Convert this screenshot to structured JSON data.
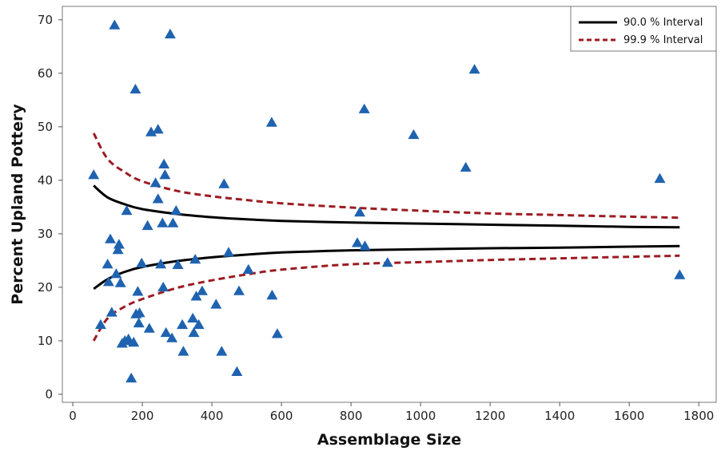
{
  "chart_data": {
    "type": "scatter",
    "title": "",
    "xlabel": "Assemblage Size",
    "ylabel": "Percent Upland Pottery",
    "xlim": [
      -30,
      1850
    ],
    "ylim": [
      -1.5,
      72.5
    ],
    "xticks": [
      0,
      200,
      400,
      600,
      800,
      1000,
      1200,
      1400,
      1600,
      1800
    ],
    "yticks": [
      0,
      10,
      20,
      30,
      40,
      50,
      60,
      70
    ],
    "grid": false,
    "legend_position": "top-right",
    "colors": {
      "points": "#1f63b0",
      "interval_90": "#000000",
      "interval_999": "#9b1c22"
    },
    "points": [
      [
        60,
        41
      ],
      [
        80,
        13
      ],
      [
        100,
        24.3
      ],
      [
        103,
        21
      ],
      [
        108,
        29
      ],
      [
        112,
        15.3
      ],
      [
        120,
        69
      ],
      [
        125,
        22.5
      ],
      [
        130,
        27
      ],
      [
        133,
        28
      ],
      [
        137,
        20.8
      ],
      [
        142,
        9.5
      ],
      [
        150,
        10
      ],
      [
        155,
        34.3
      ],
      [
        160,
        10.3
      ],
      [
        168,
        3
      ],
      [
        175,
        9.7
      ],
      [
        180,
        57
      ],
      [
        182,
        15
      ],
      [
        187,
        19.2
      ],
      [
        190,
        13.3
      ],
      [
        192,
        15.2
      ],
      [
        198,
        24.5
      ],
      [
        215,
        31.5
      ],
      [
        220,
        12.3
      ],
      [
        225,
        49
      ],
      [
        238,
        39.5
      ],
      [
        245,
        49.5
      ],
      [
        245,
        36.5
      ],
      [
        253,
        24.3
      ],
      [
        258,
        32
      ],
      [
        260,
        20
      ],
      [
        262,
        43
      ],
      [
        265,
        41
      ],
      [
        268,
        11.5
      ],
      [
        280,
        67.3
      ],
      [
        285,
        10.5
      ],
      [
        288,
        32
      ],
      [
        297,
        34.3
      ],
      [
        302,
        24.2
      ],
      [
        315,
        13
      ],
      [
        318,
        8
      ],
      [
        345,
        14.2
      ],
      [
        348,
        11.5
      ],
      [
        352,
        25.2
      ],
      [
        355,
        18.3
      ],
      [
        362,
        13
      ],
      [
        372,
        19.3
      ],
      [
        412,
        16.8
      ],
      [
        428,
        8
      ],
      [
        435,
        39.3
      ],
      [
        448,
        26.5
      ],
      [
        472,
        4.2
      ],
      [
        478,
        19.3
      ],
      [
        505,
        23.3
      ],
      [
        572,
        50.8
      ],
      [
        573,
        18.5
      ],
      [
        588,
        11.3
      ],
      [
        818,
        28.3
      ],
      [
        825,
        34
      ],
      [
        838,
        53.3
      ],
      [
        840,
        27.7
      ],
      [
        905,
        24.6
      ],
      [
        980,
        48.5
      ],
      [
        1130,
        42.4
      ],
      [
        1155,
        60.7
      ],
      [
        1688,
        40.3
      ],
      [
        1745,
        22.3
      ]
    ],
    "series": [
      {
        "name": "90.0 % Interval",
        "style": "solid",
        "upper": [
          [
            60,
            39
          ],
          [
            100,
            36.8
          ],
          [
            150,
            35.5
          ],
          [
            200,
            34.6
          ],
          [
            300,
            33.7
          ],
          [
            400,
            33.1
          ],
          [
            500,
            32.7
          ],
          [
            600,
            32.4
          ],
          [
            800,
            32.1
          ],
          [
            1000,
            31.9
          ],
          [
            1200,
            31.7
          ],
          [
            1400,
            31.5
          ],
          [
            1600,
            31.3
          ],
          [
            1745,
            31.2
          ]
        ],
        "lower": [
          [
            60,
            19.7
          ],
          [
            100,
            21.5
          ],
          [
            150,
            22.9
          ],
          [
            200,
            23.8
          ],
          [
            300,
            24.9
          ],
          [
            400,
            25.6
          ],
          [
            500,
            26.1
          ],
          [
            600,
            26.5
          ],
          [
            800,
            26.9
          ],
          [
            1000,
            27.1
          ],
          [
            1200,
            27.3
          ],
          [
            1400,
            27.4
          ],
          [
            1600,
            27.6
          ],
          [
            1745,
            27.7
          ]
        ]
      },
      {
        "name": "99.9 % Interval",
        "style": "dashed",
        "upper": [
          [
            60,
            48.8
          ],
          [
            100,
            44
          ],
          [
            150,
            41.5
          ],
          [
            200,
            39.8
          ],
          [
            300,
            38
          ],
          [
            400,
            37
          ],
          [
            500,
            36.3
          ],
          [
            600,
            35.7
          ],
          [
            800,
            34.9
          ],
          [
            1000,
            34.3
          ],
          [
            1200,
            33.8
          ],
          [
            1400,
            33.5
          ],
          [
            1600,
            33.2
          ],
          [
            1745,
            33
          ]
        ],
        "lower": [
          [
            60,
            10
          ],
          [
            100,
            14.2
          ],
          [
            150,
            16.4
          ],
          [
            200,
            17.8
          ],
          [
            300,
            19.9
          ],
          [
            400,
            21.3
          ],
          [
            500,
            22.4
          ],
          [
            600,
            23.3
          ],
          [
            800,
            24.3
          ],
          [
            1000,
            24.7
          ],
          [
            1200,
            25.1
          ],
          [
            1400,
            25.4
          ],
          [
            1600,
            25.7
          ],
          [
            1745,
            25.9
          ]
        ]
      }
    ]
  }
}
